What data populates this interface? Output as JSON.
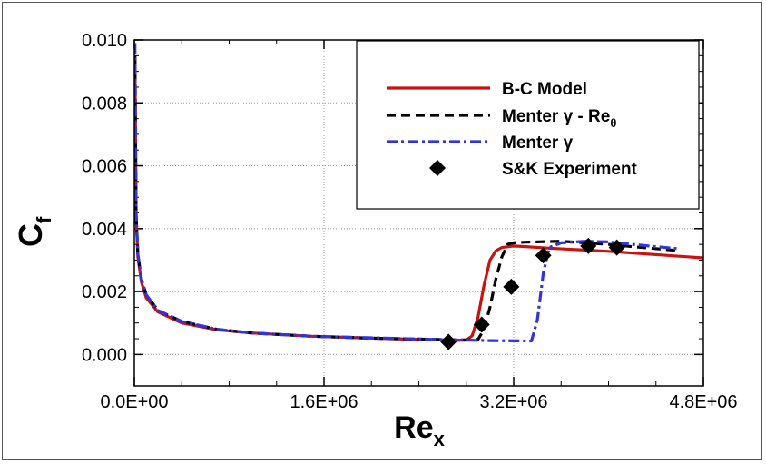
{
  "chart_data": {
    "type": "line",
    "xlabel": "Re",
    "xlabel_sub": "x",
    "ylabel": "C",
    "ylabel_sub": "f",
    "xlim": [
      0,
      4800000
    ],
    "ylim": [
      -0.001,
      0.01
    ],
    "x_ticks": [
      0,
      1600000,
      3200000,
      4800000
    ],
    "x_tick_labels": [
      "0.0E+00",
      "1.6E+06",
      "3.2E+06",
      "4.8E+06"
    ],
    "y_ticks": [
      0.0,
      0.002,
      0.004,
      0.006,
      0.008,
      0.01
    ],
    "y_tick_labels": [
      "0.000",
      "0.002",
      "0.004",
      "0.006",
      "0.008",
      "0.010"
    ],
    "grid": true,
    "legend_position": "top-right",
    "series": [
      {
        "name": "B-C Model",
        "color": "#cc1111",
        "style": "solid",
        "x": [
          5000,
          15000,
          30000,
          60000,
          100000,
          200000,
          400000,
          700000,
          1000000,
          1500000,
          2000000,
          2500000,
          2800000,
          2850000,
          2900000,
          2950000,
          3000000,
          3050000,
          3100000,
          3200000,
          3300000,
          3500000,
          4000000,
          4500000,
          4800000
        ],
        "y": [
          0.0095,
          0.0044,
          0.0031,
          0.0023,
          0.0018,
          0.00135,
          0.001,
          0.00078,
          0.00068,
          0.00058,
          0.00052,
          0.00047,
          0.00045,
          0.0006,
          0.0012,
          0.0022,
          0.003,
          0.0033,
          0.0034,
          0.00345,
          0.00343,
          0.00338,
          0.00328,
          0.00315,
          0.00307
        ]
      },
      {
        "name": "Menter γ - Re_θ",
        "name_main": "Menter γ - Re",
        "name_sub": "θ",
        "color": "#000000",
        "style": "dashed",
        "x": [
          5000,
          15000,
          30000,
          60000,
          100000,
          200000,
          400000,
          700000,
          1000000,
          1500000,
          2000000,
          2500000,
          2800000,
          2900000,
          2950000,
          3000000,
          3050000,
          3100000,
          3150000,
          3200000,
          3300000,
          3600000,
          4000000,
          4200000,
          4600000
        ],
        "y": [
          0.0095,
          0.0044,
          0.0032,
          0.0024,
          0.0019,
          0.0014,
          0.00105,
          0.0008,
          0.00068,
          0.00058,
          0.00052,
          0.00048,
          0.00046,
          0.00048,
          0.0008,
          0.0015,
          0.0024,
          0.0031,
          0.0035,
          0.00355,
          0.00357,
          0.0036,
          0.0035,
          0.00343,
          0.0033
        ]
      },
      {
        "name": "Menter γ",
        "color": "#3333dd",
        "style": "dashdot",
        "x": [
          5000,
          15000,
          30000,
          60000,
          100000,
          200000,
          400000,
          700000,
          1000000,
          1500000,
          2000000,
          2500000,
          3000000,
          3350000,
          3400000,
          3450000,
          3500000,
          3600000,
          3800000,
          4000000,
          4200000,
          4400000,
          4600000
        ],
        "y": [
          0.0099,
          0.0045,
          0.0032,
          0.0024,
          0.0019,
          0.0014,
          0.00105,
          0.0008,
          0.00068,
          0.00058,
          0.00053,
          0.00048,
          0.00044,
          0.00043,
          0.0011,
          0.0026,
          0.0034,
          0.00355,
          0.0036,
          0.00358,
          0.0035,
          0.00343,
          0.00336
        ]
      },
      {
        "name": "S&K Experiment",
        "color": "#000000",
        "style": "marker",
        "x": [
          2650000,
          2930000,
          3180000,
          3450000,
          3830000,
          4070000
        ],
        "y": [
          0.0004,
          0.00095,
          0.00215,
          0.00315,
          0.00345,
          0.0034
        ]
      }
    ]
  }
}
